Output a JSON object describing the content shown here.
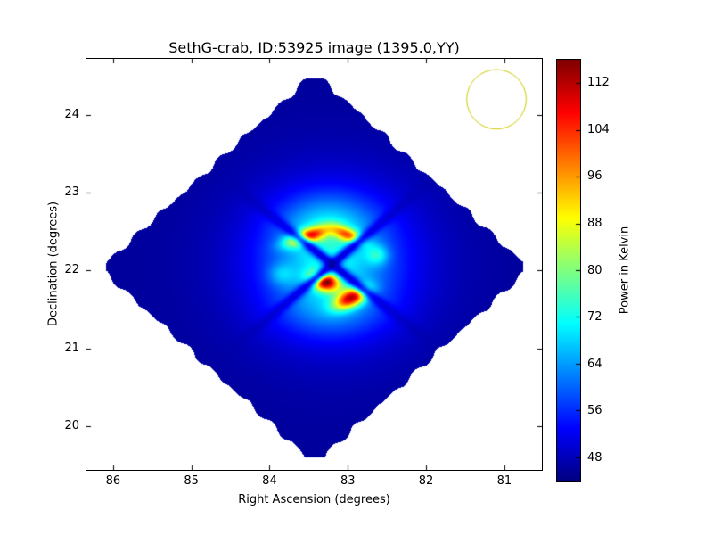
{
  "chart_data": {
    "type": "heatmap",
    "title": "SethG-crab, ID:53925 image (1395.0,YY)",
    "xlabel": "Right Ascension (degrees)",
    "ylabel": "Declination (degrees)",
    "x_ticks": [
      86,
      85,
      84,
      83,
      82,
      81
    ],
    "y_ticks": [
      20,
      21,
      22,
      23,
      24
    ],
    "x_range": [
      86.34,
      80.52
    ],
    "y_range": [
      19.44,
      24.72
    ],
    "x_axis_inverted": true,
    "grid": false,
    "colormap": "jet",
    "value_range": [
      44,
      116
    ],
    "colorbar_ticks": [
      48,
      56,
      64,
      72,
      80,
      88,
      96,
      104,
      112
    ],
    "colorbar_label": "Power in Kelvin",
    "background_outside_footprint": "#ffffff",
    "frame_color": "#000000",
    "footprint": {
      "shape": "rotated-square",
      "center_ra": 83.42,
      "center_dec": 22.03,
      "half_diag_ra_deg": 2.75,
      "half_diag_dec_deg": 2.52,
      "corner_cut_ra_deg": 2.67,
      "corner_cut_dec_deg": 2.44,
      "base_value_K": 46,
      "edge_wobble_deg": 0.025
    },
    "source_features": [
      {
        "name": "outer-halo",
        "ra": 83.2,
        "dec": 22.1,
        "amp": 12,
        "sigma_ra": 0.82,
        "sigma_dec": 0.75,
        "theta_deg": 0
      },
      {
        "name": "inner-core",
        "ra": 83.22,
        "dec": 22.12,
        "amp": 13,
        "sigma_ra": 0.5,
        "sigma_dec": 0.44,
        "theta_deg": 0
      },
      {
        "name": "north-lobe",
        "ra": 83.27,
        "dec": 22.62,
        "amp": 9,
        "sigma_ra": 0.4,
        "sigma_dec": 0.26,
        "theta_deg": 0
      },
      {
        "name": "south-lobe",
        "ra": 83.2,
        "dec": 21.48,
        "amp": 7,
        "sigma_ra": 0.46,
        "sigma_dec": 0.24,
        "theta_deg": 0
      },
      {
        "name": "arc-northwest",
        "ra": 83.52,
        "dec": 22.44,
        "amp": 40,
        "sigma_ra": 0.19,
        "sigma_dec": 0.065,
        "theta_deg": -18
      },
      {
        "name": "arc-northeast",
        "ra": 83.0,
        "dec": 22.46,
        "amp": 31,
        "sigma_ra": 0.15,
        "sigma_dec": 0.06,
        "theta_deg": 22
      },
      {
        "name": "spot-southwest",
        "ra": 83.3,
        "dec": 21.86,
        "amp": 50,
        "sigma_ra": 0.13,
        "sigma_dec": 0.08,
        "theta_deg": 15
      },
      {
        "name": "spot-southeast",
        "ra": 82.95,
        "dec": 21.65,
        "amp": 46,
        "sigma_ra": 0.16,
        "sigma_dec": 0.08,
        "theta_deg": -25
      },
      {
        "name": "knot-east",
        "ra": 82.62,
        "dec": 22.2,
        "amp": 12,
        "sigma_ra": 0.1,
        "sigma_dec": 0.09,
        "theta_deg": 0
      },
      {
        "name": "knot-west",
        "ra": 83.85,
        "dec": 21.95,
        "amp": 8,
        "sigma_ra": 0.12,
        "sigma_dec": 0.1,
        "theta_deg": 0
      }
    ],
    "null_lines": [
      {
        "name": "null-diagonal-1",
        "ra": 83.2,
        "dec": 22.08,
        "dir_ra": 1,
        "dir_dec": 0.8,
        "width_deg": 0.05,
        "depth": 0.85,
        "extent_deg": 1.0
      },
      {
        "name": "null-diagonal-2",
        "ra": 83.2,
        "dec": 22.08,
        "dir_ra": 1,
        "dir_dec": -0.85,
        "width_deg": 0.05,
        "depth": 0.85,
        "extent_deg": 1.0
      }
    ],
    "beam_circle": {
      "ra": 81.1,
      "dec": 24.2,
      "radius_deg": 0.38,
      "color": "#cccc00"
    }
  }
}
